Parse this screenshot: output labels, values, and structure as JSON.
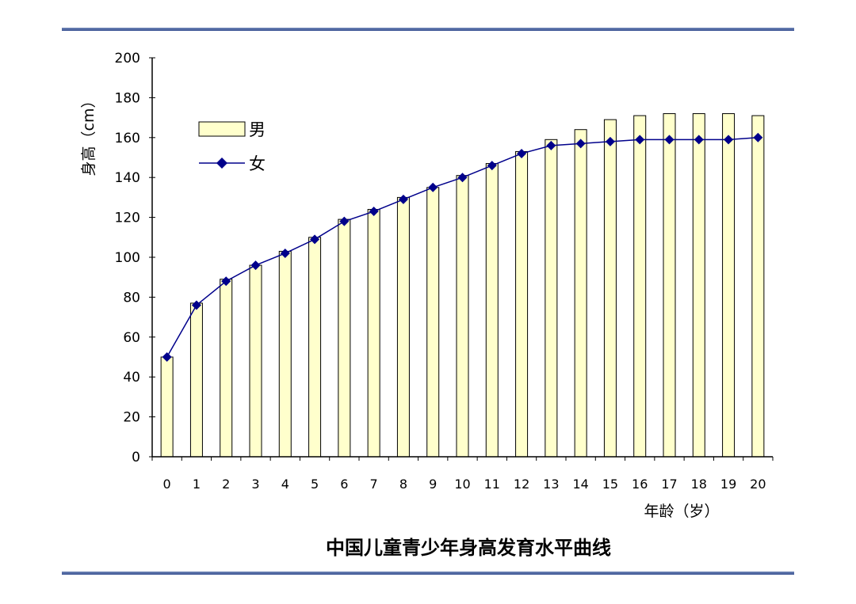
{
  "chart_data": {
    "type": "bar",
    "title": "中国儿童青少年身高发育水平曲线",
    "xlabel": "年龄（岁）",
    "ylabel": "身高（cm）",
    "ylim": [
      0,
      200
    ],
    "yticks": [
      0,
      20,
      40,
      60,
      80,
      100,
      120,
      140,
      160,
      180,
      200
    ],
    "grid": false,
    "legend_position": "top-left",
    "categories": [
      "0",
      "1",
      "2",
      "3",
      "4",
      "5",
      "6",
      "7",
      "8",
      "9",
      "10",
      "11",
      "12",
      "13",
      "14",
      "15",
      "16",
      "17",
      "18",
      "19",
      "20"
    ],
    "series": [
      {
        "name": "男",
        "type": "bar",
        "color": "#ffffcc",
        "values": [
          50,
          77,
          89,
          96,
          103,
          110,
          119,
          124,
          130,
          135,
          141,
          147,
          153,
          159,
          164,
          169,
          171,
          172,
          172,
          172,
          171
        ]
      },
      {
        "name": "女",
        "type": "line",
        "color": "#00008b",
        "values": [
          50,
          76,
          88,
          96,
          102,
          109,
          118,
          123,
          129,
          135,
          140,
          146,
          152,
          156,
          157,
          158,
          159,
          159,
          159,
          159,
          160
        ]
      }
    ]
  }
}
